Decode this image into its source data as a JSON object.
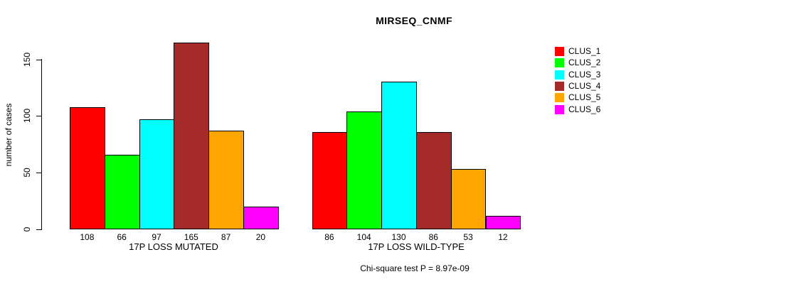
{
  "chart_data": {
    "type": "bar",
    "title": "MIRSEQ_CNMF",
    "ylabel": "number of cases",
    "yticks": [
      0,
      50,
      100,
      150
    ],
    "ylim": [
      0,
      165
    ],
    "grid": false,
    "legend_position": "right",
    "categories": [
      "17P LOSS MUTATED",
      "17P LOSS WILD-TYPE"
    ],
    "series": [
      {
        "name": "CLUS_1",
        "color": "#FF0000",
        "values": [
          108,
          86
        ]
      },
      {
        "name": "CLUS_2",
        "color": "#00FF00",
        "values": [
          66,
          104
        ]
      },
      {
        "name": "CLUS_3",
        "color": "#00FFFF",
        "values": [
          97,
          130
        ]
      },
      {
        "name": "CLUS_4",
        "color": "#A52A2A",
        "values": [
          165,
          86
        ]
      },
      {
        "name": "CLUS_5",
        "color": "#FFA500",
        "values": [
          87,
          53
        ]
      },
      {
        "name": "CLUS_6",
        "color": "#FF00FF",
        "values": [
          20,
          12
        ]
      }
    ],
    "bar_value_labels": true,
    "annotation": "Chi-square test P = 8.97e-09"
  }
}
